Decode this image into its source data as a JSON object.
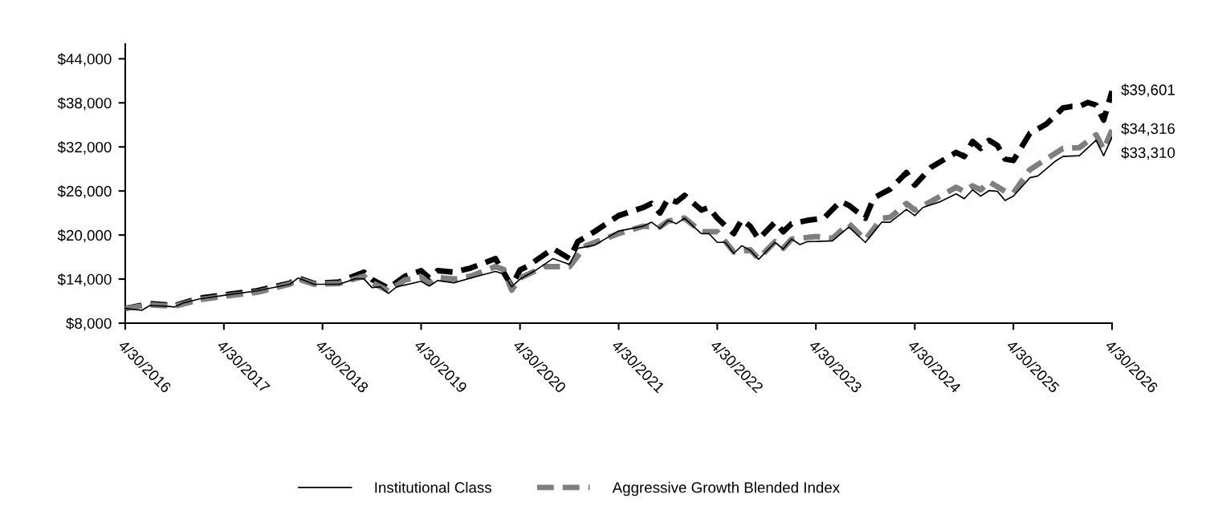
{
  "chart_data": {
    "type": "line",
    "xlim": [
      "2016-04",
      "2026-04"
    ],
    "xticks": [
      {
        "value": "2016-04",
        "label": "4/30/2016"
      },
      {
        "value": "2017-04",
        "label": "4/30/2017"
      },
      {
        "value": "2018-04",
        "label": "4/30/2018"
      },
      {
        "value": "2019-04",
        "label": "4/30/2019"
      },
      {
        "value": "2020-04",
        "label": "4/30/2020"
      },
      {
        "value": "2021-04",
        "label": "4/30/2021"
      },
      {
        "value": "2022-04",
        "label": "4/30/2022"
      },
      {
        "value": "2023-04",
        "label": "4/30/2023"
      },
      {
        "value": "2024-04",
        "label": "4/30/2024"
      },
      {
        "value": "2025-04",
        "label": "4/30/2025"
      },
      {
        "value": "2026-04",
        "label": "4/30/2026"
      }
    ],
    "ylim": [
      8000,
      46000
    ],
    "yticks": [
      {
        "value": 8000,
        "label": "$8,000"
      },
      {
        "value": 14000,
        "label": "$14,000"
      },
      {
        "value": 20000,
        "label": "$20,000"
      },
      {
        "value": 26000,
        "label": "$26,000"
      },
      {
        "value": 32000,
        "label": "$32,000"
      },
      {
        "value": 38000,
        "label": "$38,000"
      },
      {
        "value": 44000,
        "label": "$44,000"
      }
    ],
    "grid": false,
    "legend": "bottom",
    "series": [
      {
        "name": "Institutional Class",
        "color": "#000000",
        "line_style": "solid",
        "x": [
          "2016-04",
          "2016-06",
          "2016-07",
          "2016-09",
          "2016-10",
          "2016-11",
          "2017-01",
          "2017-05",
          "2017-08",
          "2017-12",
          "2018-01",
          "2018-03",
          "2018-06",
          "2018-08",
          "2018-09",
          "2018-10",
          "2018-11",
          "2018-12",
          "2019-01",
          "2019-04",
          "2019-05",
          "2019-06",
          "2019-08",
          "2019-10",
          "2020-01",
          "2020-02",
          "2020-03",
          "2020-04",
          "2020-06",
          "2020-08",
          "2020-10",
          "2020-11",
          "2021-01",
          "2021-04",
          "2021-07",
          "2021-08",
          "2021-09",
          "2021-10",
          "2021-11",
          "2021-12",
          "2022-02",
          "2022-03",
          "2022-04",
          "2022-05",
          "2022-06",
          "2022-07",
          "2022-08",
          "2022-09",
          "2022-11",
          "2022-12",
          "2023-01",
          "2023-02",
          "2023-03",
          "2023-06",
          "2023-08",
          "2023-10",
          "2023-12",
          "2024-01",
          "2024-03",
          "2024-04",
          "2024-05",
          "2024-07",
          "2024-09",
          "2024-10",
          "2024-11",
          "2024-12",
          "2025-01",
          "2025-02",
          "2025-03",
          "2025-04",
          "2025-06",
          "2025-07",
          "2025-09",
          "2025-10",
          "2025-12",
          "2026-02",
          "2026-03",
          "2026-04"
        ],
        "values": [
          10000,
          9750,
          10400,
          10300,
          10200,
          10750,
          11300,
          11950,
          12400,
          13300,
          14150,
          13300,
          13300,
          14050,
          14050,
          12850,
          12950,
          12050,
          12950,
          13700,
          13050,
          13800,
          13500,
          14150,
          15050,
          14700,
          12950,
          14000,
          15270,
          16800,
          16000,
          18200,
          18600,
          20550,
          21200,
          21750,
          20900,
          22000,
          21550,
          22300,
          20200,
          20200,
          19000,
          19000,
          17500,
          18550,
          17900,
          16700,
          19000,
          18100,
          19450,
          18700,
          19100,
          19200,
          21100,
          19000,
          21750,
          21750,
          23500,
          22650,
          23750,
          24500,
          25600,
          24950,
          26150,
          25300,
          26050,
          25950,
          24700,
          25300,
          27800,
          28050,
          30000,
          30700,
          30800,
          32900,
          30800,
          33310
        ]
      },
      {
        "name": "Aggressive Growth Blended Index",
        "color": "#7f7f7f",
        "line_style": "dashed",
        "x": [
          "2016-04",
          "2016-07",
          "2016-10",
          "2017-01",
          "2017-05",
          "2017-08",
          "2017-12",
          "2018-01",
          "2018-03",
          "2018-06",
          "2018-09",
          "2018-10",
          "2018-12",
          "2019-02",
          "2019-04",
          "2019-05",
          "2019-06",
          "2019-08",
          "2019-10",
          "2020-01",
          "2020-02",
          "2020-03",
          "2020-04",
          "2020-07",
          "2020-10",
          "2020-12",
          "2021-04",
          "2021-07",
          "2021-09",
          "2021-10",
          "2021-12",
          "2022-02",
          "2022-04",
          "2022-06",
          "2022-08",
          "2022-09",
          "2022-11",
          "2022-12",
          "2023-01",
          "2023-04",
          "2023-06",
          "2023-08",
          "2023-10",
          "2023-12",
          "2024-01",
          "2024-03",
          "2024-04",
          "2024-06",
          "2024-09",
          "2024-10",
          "2024-11",
          "2024-12",
          "2025-01",
          "2025-03",
          "2025-04",
          "2025-06",
          "2025-08",
          "2025-10",
          "2025-12",
          "2026-02",
          "2026-03",
          "2026-04"
        ],
        "values": [
          10000,
          10500,
          10300,
          11200,
          11800,
          12200,
          13300,
          14000,
          13300,
          13400,
          14400,
          13500,
          12400,
          13900,
          14300,
          13400,
          14200,
          14000,
          14400,
          15700,
          15300,
          12500,
          14150,
          15700,
          15700,
          18550,
          20200,
          21200,
          21100,
          21900,
          22300,
          20450,
          20450,
          17700,
          18000,
          16800,
          19100,
          18200,
          19450,
          19800,
          19550,
          21550,
          19350,
          22300,
          22400,
          24300,
          23400,
          24600,
          26500,
          25950,
          26700,
          26150,
          27250,
          25950,
          25700,
          28900,
          30350,
          31800,
          31900,
          33650,
          31650,
          34316
        ]
      },
      {
        "color": "#000000",
        "line_style": "dashed",
        "x": [
          "2016-04",
          "2016-07",
          "2016-10",
          "2017-01",
          "2017-05",
          "2017-08",
          "2017-12",
          "2018-01",
          "2018-03",
          "2018-06",
          "2018-09",
          "2018-10",
          "2018-12",
          "2019-02",
          "2019-04",
          "2019-05",
          "2019-06",
          "2019-08",
          "2019-10",
          "2020-01",
          "2020-03",
          "2020-04",
          "2020-05",
          "2020-08",
          "2020-10",
          "2020-11",
          "2021-01",
          "2021-04",
          "2021-07",
          "2021-08",
          "2021-09",
          "2021-10",
          "2021-11",
          "2021-12",
          "2022-02",
          "2022-03",
          "2022-04",
          "2022-06",
          "2022-07",
          "2022-08",
          "2022-09",
          "2022-11",
          "2022-12",
          "2023-01",
          "2023-03",
          "2023-05",
          "2023-07",
          "2023-08",
          "2023-10",
          "2023-11",
          "2024-01",
          "2024-03",
          "2024-04",
          "2024-06",
          "2024-09",
          "2024-10",
          "2024-11",
          "2024-12",
          "2025-01",
          "2025-02",
          "2025-03",
          "2025-04",
          "2025-06",
          "2025-08",
          "2025-10",
          "2025-11",
          "2025-12",
          "2026-01",
          "2026-02",
          "2026-03",
          "2026-04"
        ],
        "values": [
          10000,
          10650,
          10400,
          11400,
          12000,
          12400,
          13450,
          14150,
          13400,
          13600,
          14950,
          13950,
          12750,
          14400,
          15150,
          14150,
          15150,
          14950,
          15500,
          16800,
          13050,
          15250,
          15800,
          18150,
          16800,
          19100,
          20450,
          22650,
          23750,
          24300,
          23000,
          24950,
          24500,
          25400,
          23400,
          23750,
          22300,
          20200,
          22100,
          21200,
          19450,
          21750,
          20450,
          21550,
          22000,
          22300,
          24600,
          24050,
          22300,
          25050,
          26250,
          28500,
          26800,
          29250,
          31250,
          30700,
          32750,
          31800,
          32900,
          32200,
          30350,
          30150,
          33850,
          35100,
          37300,
          37500,
          37500,
          38050,
          37700,
          35650,
          39601
        ]
      }
    ],
    "annotations": [
      {
        "text": "$39,601",
        "x": "2026-04",
        "y": 39601
      },
      {
        "text": "$34,316",
        "x": "2026-04",
        "y": 34316
      },
      {
        "text": "$33,310",
        "x": "2026-04",
        "y": 33310
      }
    ]
  }
}
